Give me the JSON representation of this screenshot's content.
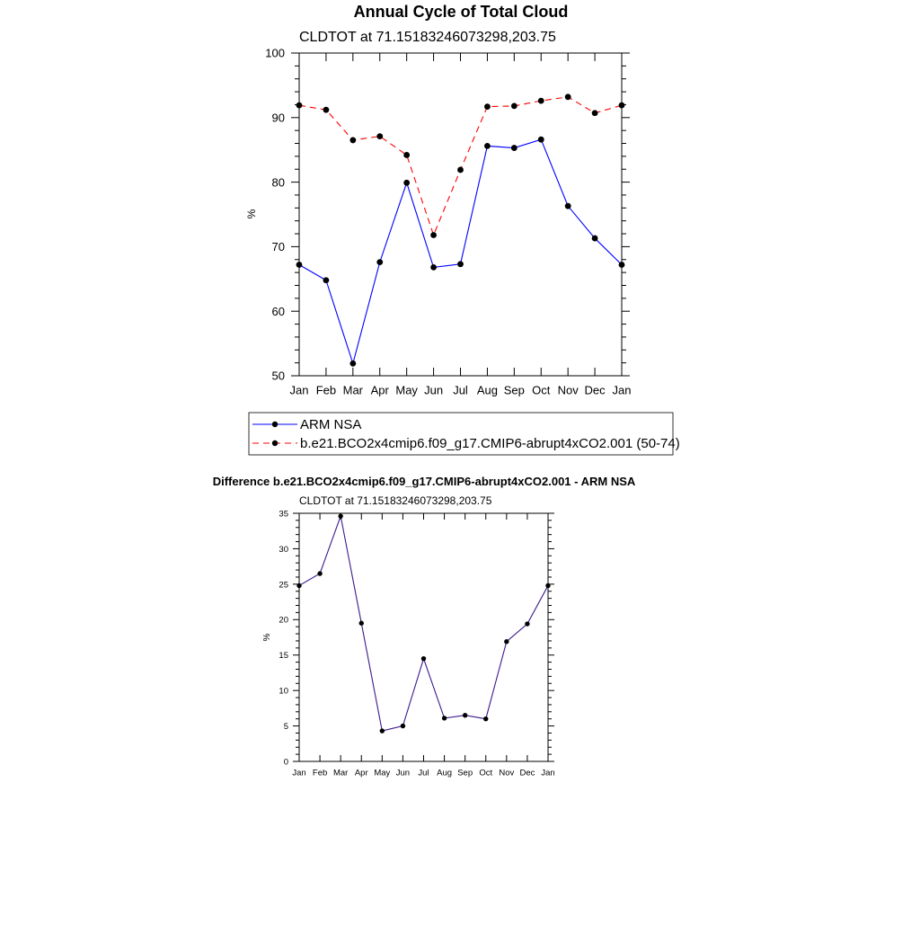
{
  "chart_data": [
    {
      "type": "line",
      "title": "Annual Cycle of Total Cloud",
      "subtitle": "CLDTOT at 71.15183246073298,203.75",
      "xlabel": "",
      "ylabel": "%",
      "ylim": [
        50,
        100
      ],
      "yticks": [
        50,
        60,
        70,
        80,
        90,
        100
      ],
      "categories": [
        "Jan",
        "Feb",
        "Mar",
        "Apr",
        "May",
        "Jun",
        "Jul",
        "Aug",
        "Sep",
        "Oct",
        "Nov",
        "Dec",
        "Jan"
      ],
      "legend_position": "bottom",
      "series": [
        {
          "name": "ARM NSA",
          "color": "#0000ff",
          "dash": "solid",
          "values": [
            67.2,
            64.8,
            51.9,
            67.6,
            79.9,
            66.8,
            67.3,
            85.6,
            85.3,
            86.6,
            76.3,
            71.3,
            67.2
          ]
        },
        {
          "name": "b.e21.BCO2x4cmip6.f09_g17.CMIP6-abrupt4xCO2.001 (50-74)",
          "color": "#ff0000",
          "dash": "dashed",
          "values": [
            91.9,
            91.2,
            86.5,
            87.1,
            84.2,
            71.8,
            81.9,
            91.7,
            91.8,
            92.6,
            93.2,
            90.7,
            91.9
          ]
        }
      ]
    },
    {
      "type": "line",
      "title": "Difference b.e21.BCO2x4cmip6.f09_g17.CMIP6-abrupt4xCO2.001 - ARM NSA",
      "subtitle": "CLDTOT at 71.15183246073298,203.75",
      "xlabel": "",
      "ylabel": "%",
      "ylim": [
        0,
        35
      ],
      "yticks": [
        0,
        5,
        10,
        15,
        20,
        25,
        30,
        35
      ],
      "categories": [
        "Jan",
        "Feb",
        "Mar",
        "Apr",
        "May",
        "Jun",
        "Jul",
        "Aug",
        "Sep",
        "Oct",
        "Nov",
        "Dec",
        "Jan"
      ],
      "series": [
        {
          "name": "Difference",
          "color": "#3c1a8c",
          "dash": "solid",
          "values": [
            24.8,
            26.5,
            34.6,
            19.5,
            4.3,
            5.0,
            14.5,
            6.1,
            6.5,
            6.0,
            16.9,
            19.4,
            24.8
          ]
        }
      ]
    }
  ]
}
